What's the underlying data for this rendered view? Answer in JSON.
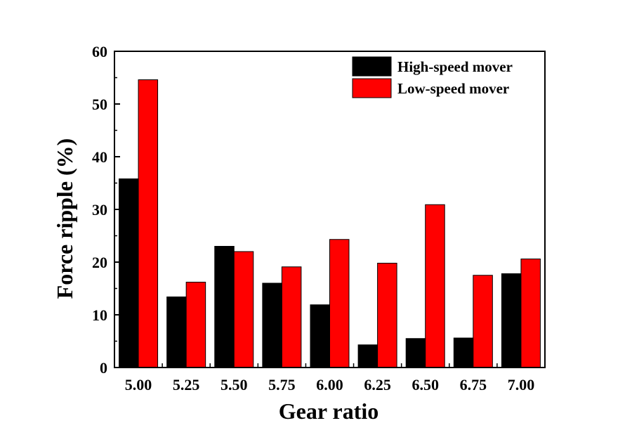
{
  "chart_data": {
    "type": "bar",
    "title": "",
    "xlabel": "Gear ratio",
    "ylabel": "Force ripple (%)",
    "categories": [
      "5.00",
      "5.25",
      "5.50",
      "5.75",
      "6.00",
      "6.25",
      "6.50",
      "6.75",
      "7.00"
    ],
    "ylim": [
      0,
      60
    ],
    "yticks": [
      "0",
      "10",
      "20",
      "30",
      "40",
      "50",
      "60"
    ],
    "grid": false,
    "legend_position": "top-right",
    "series": [
      {
        "name": "High-speed mover",
        "color": "#000000",
        "values": [
          35.8,
          13.4,
          23.0,
          16.0,
          11.9,
          4.3,
          5.5,
          5.6,
          17.8
        ]
      },
      {
        "name": "Low-speed mover",
        "color": "#ff0000",
        "values": [
          54.6,
          16.2,
          22.0,
          19.1,
          24.3,
          19.8,
          30.9,
          17.5,
          20.6
        ]
      }
    ]
  }
}
